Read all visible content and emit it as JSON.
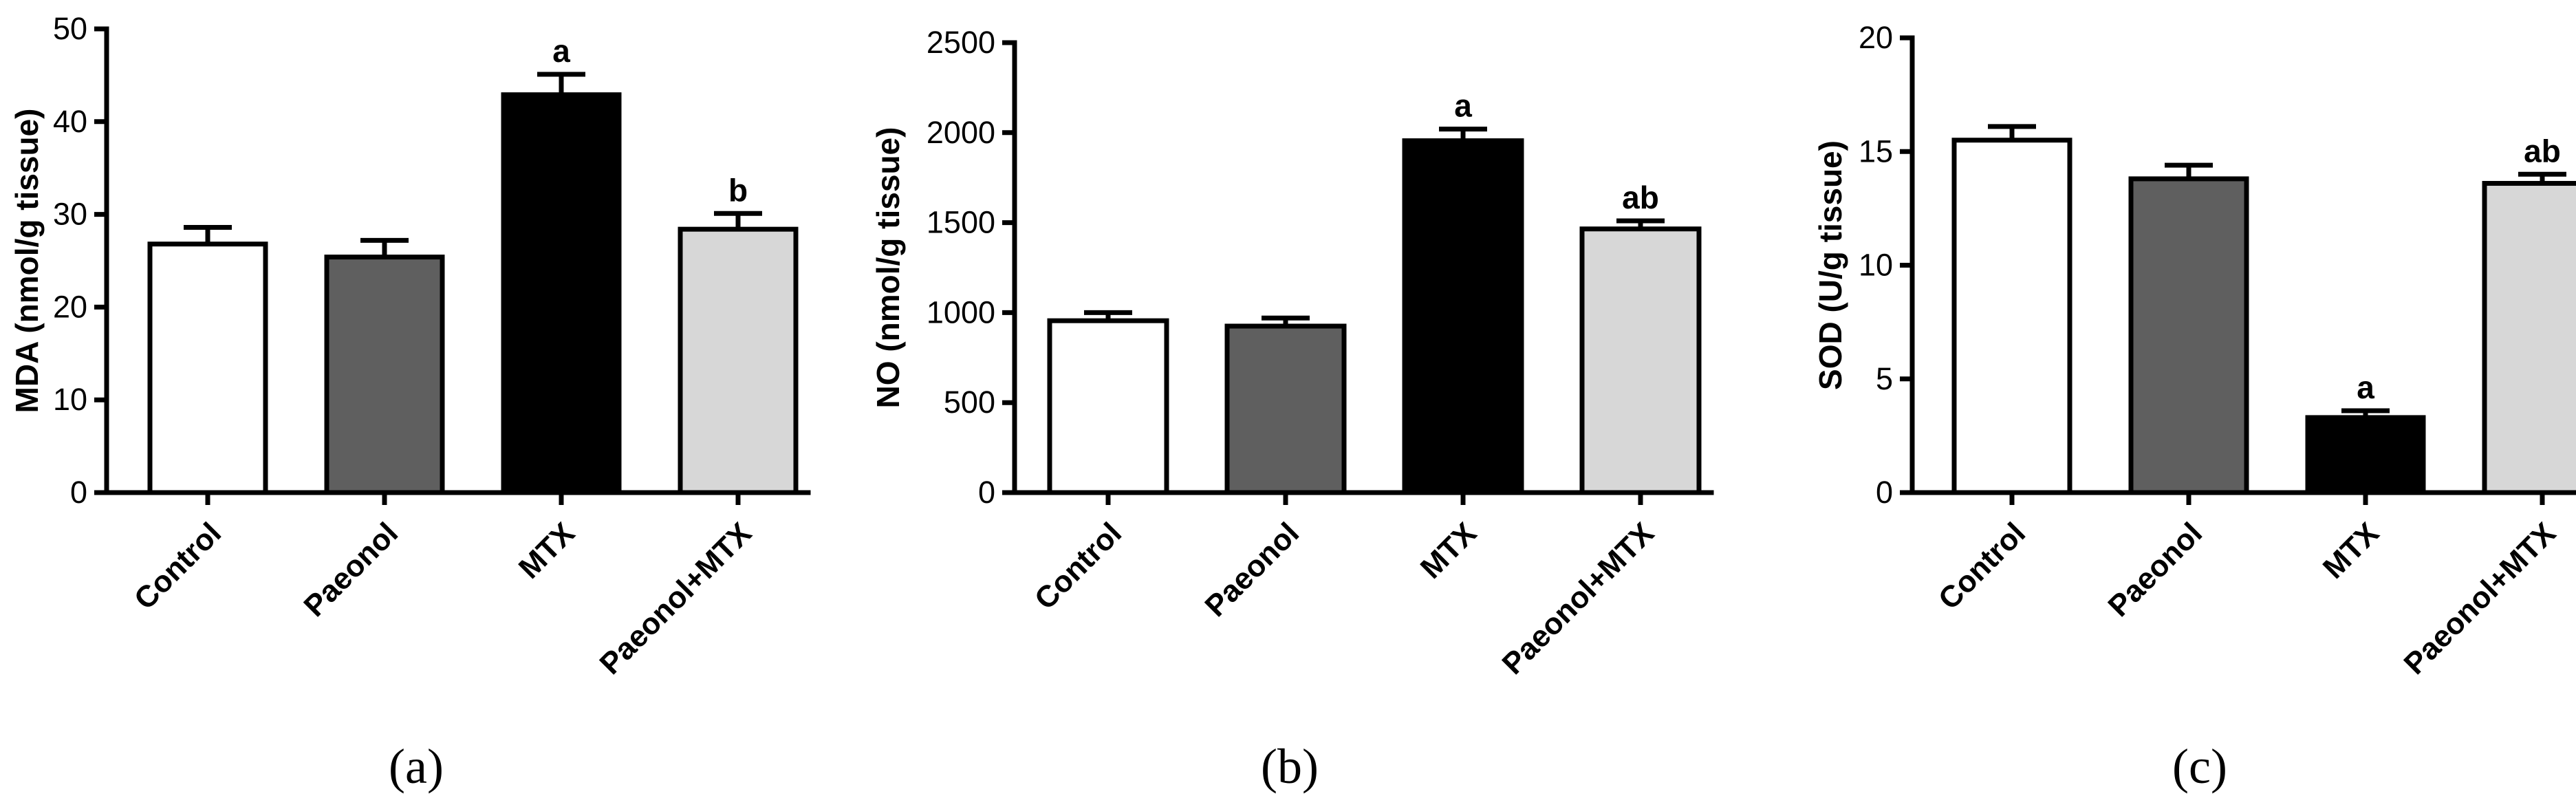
{
  "chart_data": [
    {
      "type": "bar",
      "panel_label": "(a)",
      "categories": [
        "Control",
        "Paeonol",
        "MTX",
        "Paeonol+MTX"
      ],
      "values": [
        26.8,
        25.4,
        42.9,
        28.4
      ],
      "errors": [
        1.8,
        1.8,
        2.2,
        1.7
      ],
      "significance": [
        "",
        "",
        "a",
        "b"
      ],
      "bar_colors": [
        "#ffffff",
        "#5f5f5f",
        "#000000",
        "#d7d7d7"
      ],
      "ylabel": "MDA (nmol/g tissue)",
      "ylim": [
        0,
        50
      ],
      "yticks": [
        0,
        10,
        20,
        30,
        40,
        50
      ]
    },
    {
      "type": "bar",
      "panel_label": "(b)",
      "categories": [
        "Control",
        "Paeonol",
        "MTX",
        "Paeonol+MTX"
      ],
      "values": [
        955,
        925,
        1955,
        1465
      ],
      "errors": [
        45,
        45,
        65,
        45
      ],
      "significance": [
        "",
        "",
        "a",
        "ab"
      ],
      "bar_colors": [
        "#ffffff",
        "#5f5f5f",
        "#000000",
        "#d7d7d7"
      ],
      "ylabel": "NO (nmol/g tissue)",
      "ylim": [
        0,
        2500
      ],
      "yticks": [
        0,
        500,
        1000,
        1500,
        2000,
        2500
      ]
    },
    {
      "type": "bar",
      "panel_label": "(c)",
      "categories": [
        "Control",
        "Paeonol",
        "MTX",
        "Paeonol+MTX"
      ],
      "values": [
        15.5,
        13.8,
        3.3,
        13.6
      ],
      "errors": [
        0.6,
        0.6,
        0.3,
        0.4
      ],
      "significance": [
        "",
        "",
        "a",
        "ab"
      ],
      "bar_colors": [
        "#ffffff",
        "#5f5f5f",
        "#000000",
        "#d7d7d7"
      ],
      "ylabel": "SOD (U/g tissue)",
      "ylim": [
        0,
        20
      ],
      "yticks": [
        0,
        5,
        10,
        15,
        20
      ]
    }
  ]
}
